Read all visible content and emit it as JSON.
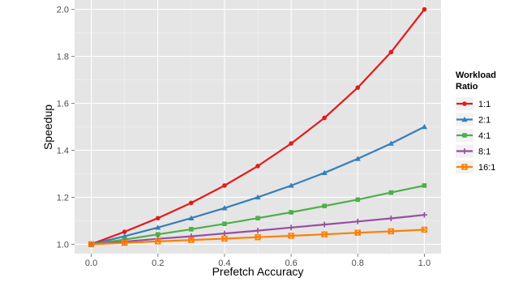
{
  "chart_data": {
    "type": "line",
    "xlabel": "Prefetch Accuracy",
    "ylabel": "Speedup",
    "xlim": [
      -0.05,
      1.05
    ],
    "ylim": [
      0.96,
      2.04
    ],
    "x_ticks": [
      0.0,
      0.2,
      0.4,
      0.6,
      0.8,
      1.0
    ],
    "y_ticks": [
      1.0,
      1.2,
      1.4,
      1.6,
      1.8,
      2.0
    ],
    "x_tick_labels": [
      "0.0",
      "0.2",
      "0.4",
      "0.6",
      "0.8",
      "1.0"
    ],
    "y_tick_labels": [
      "1.0",
      "1.2",
      "1.4",
      "1.6",
      "1.8",
      "2.0"
    ],
    "grid": true,
    "background": "#e5e5e5",
    "legend": {
      "title": "Workload Ratio",
      "title_lines": [
        "Workload",
        "Ratio"
      ],
      "placement": "right"
    },
    "x": [
      0.0,
      0.1,
      0.2,
      0.3,
      0.4,
      0.5,
      0.6,
      0.7,
      0.8,
      0.9,
      1.0
    ],
    "series": [
      {
        "name": "1:1",
        "color": "#e41a1c",
        "marker": "circle",
        "values": [
          1.0,
          1.053,
          1.111,
          1.176,
          1.25,
          1.333,
          1.429,
          1.538,
          1.667,
          1.818,
          2.0
        ]
      },
      {
        "name": "2:1",
        "color": "#377eb8",
        "marker": "triangle",
        "values": [
          1.0,
          1.034,
          1.071,
          1.111,
          1.154,
          1.2,
          1.25,
          1.304,
          1.364,
          1.429,
          1.5
        ]
      },
      {
        "name": "4:1",
        "color": "#4daf4a",
        "marker": "square",
        "values": [
          1.0,
          1.02,
          1.042,
          1.064,
          1.087,
          1.111,
          1.136,
          1.163,
          1.19,
          1.22,
          1.25
        ]
      },
      {
        "name": "8:1",
        "color": "#984ea3",
        "marker": "plus",
        "values": [
          1.0,
          1.011,
          1.023,
          1.034,
          1.046,
          1.058,
          1.071,
          1.084,
          1.097,
          1.11,
          1.125
        ]
      },
      {
        "name": "16:1",
        "color": "#ff7f00",
        "marker": "boxx",
        "values": [
          1.0,
          1.006,
          1.012,
          1.018,
          1.024,
          1.03,
          1.036,
          1.042,
          1.049,
          1.055,
          1.062
        ]
      }
    ]
  }
}
